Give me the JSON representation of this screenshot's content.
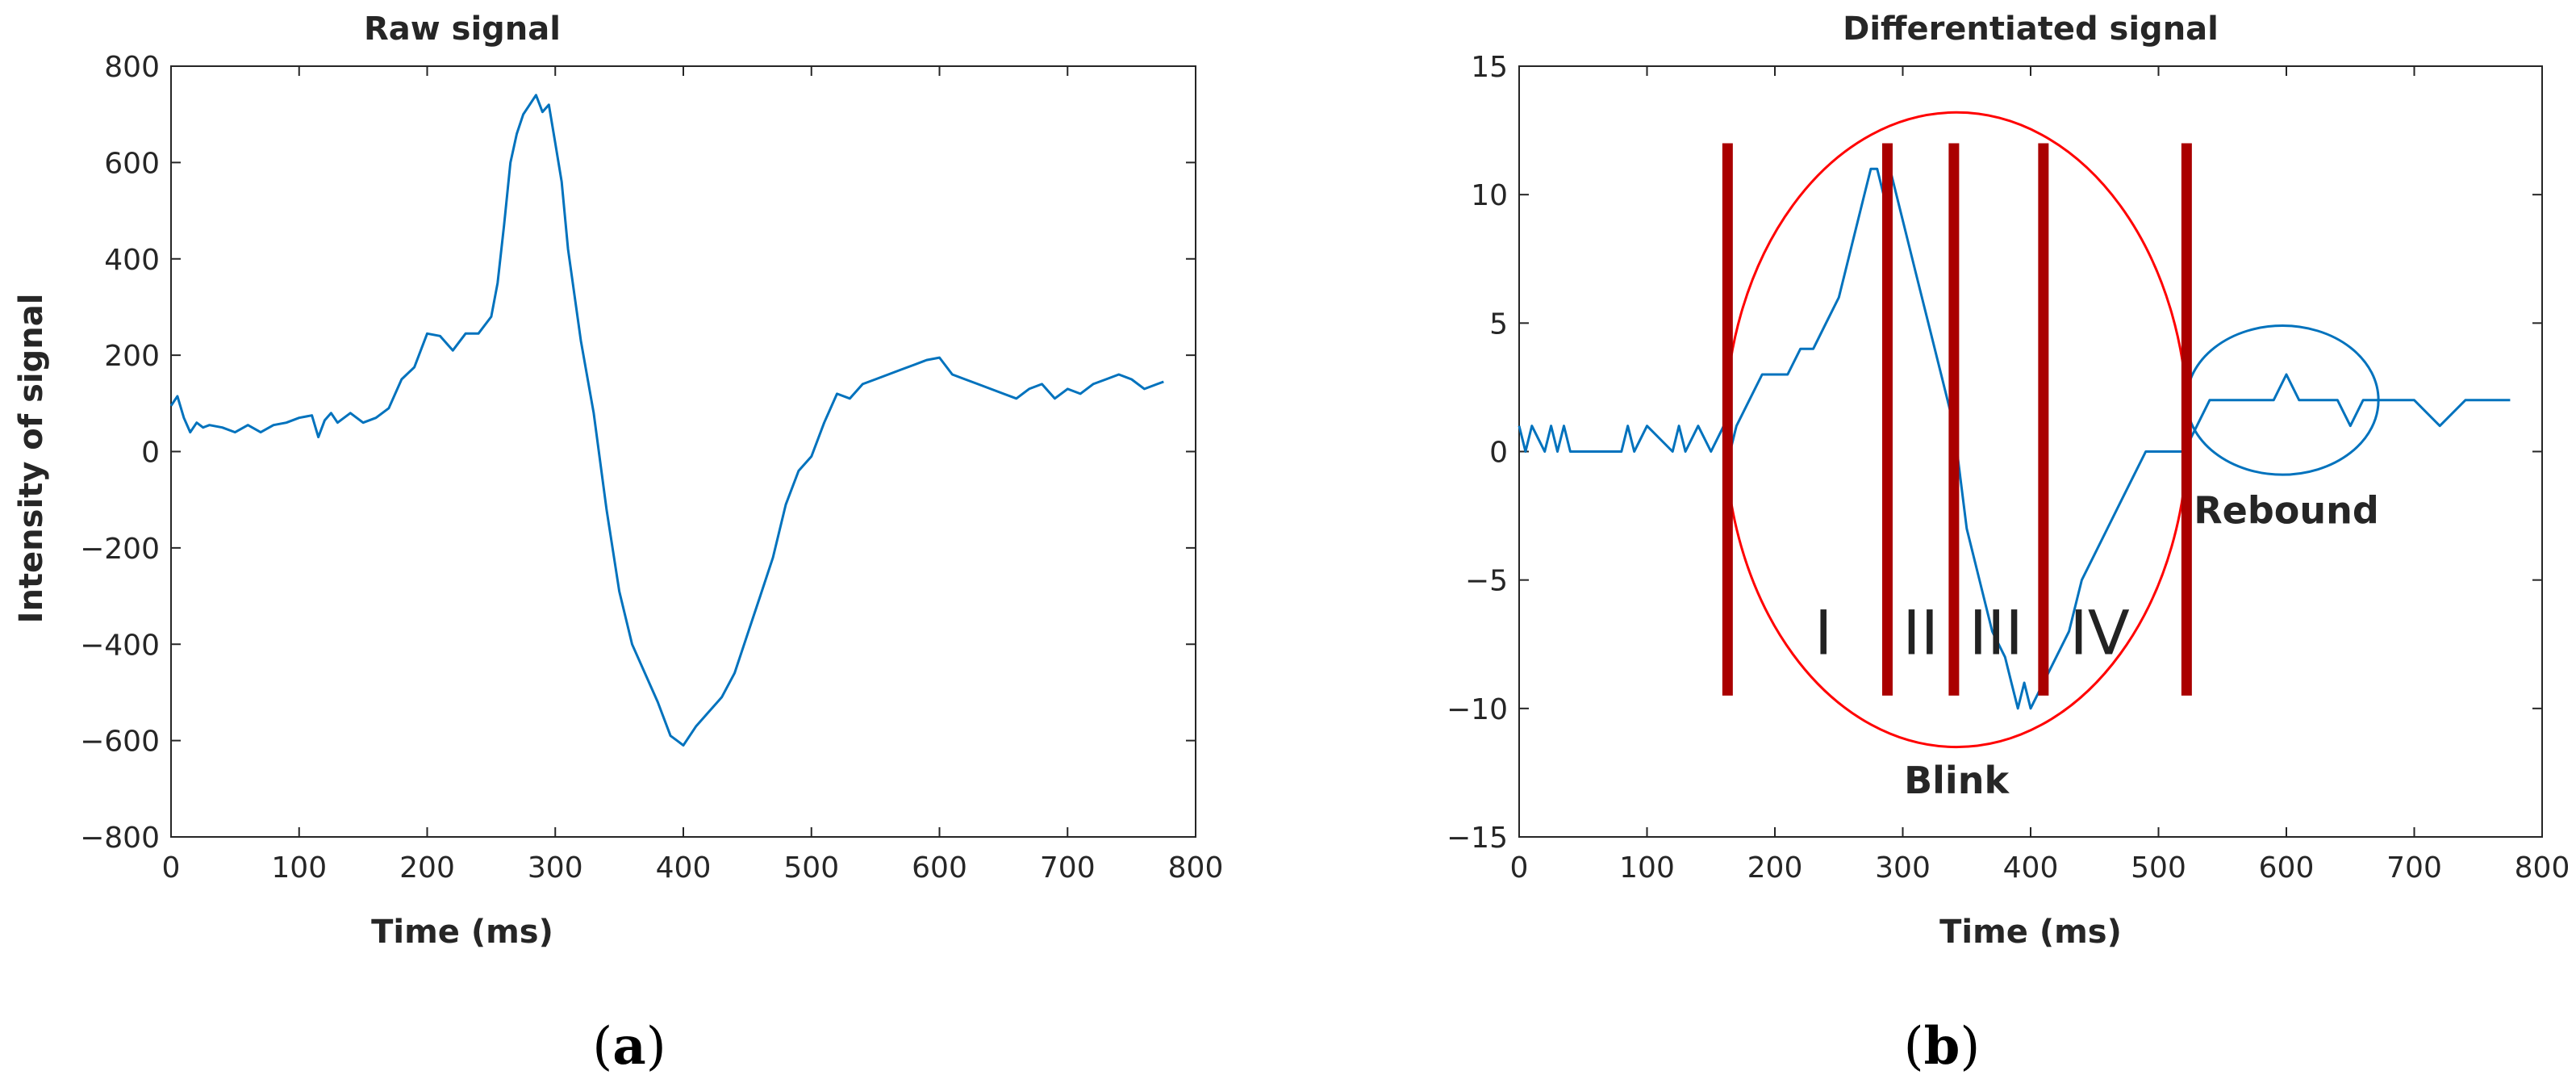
{
  "figure": {
    "panel_a_label": "a",
    "panel_b_label": "b"
  },
  "chart_data": [
    {
      "type": "line",
      "title": "Raw signal",
      "xlabel": "Time (ms)",
      "ylabel": "Intensity of signal",
      "xlim": [
        0,
        800
      ],
      "ylim": [
        -800,
        800
      ],
      "xticks": [
        0,
        100,
        200,
        300,
        400,
        500,
        600,
        700,
        800
      ],
      "yticks": [
        -800,
        -600,
        -400,
        -200,
        0,
        200,
        400,
        600,
        800
      ],
      "ytick_labels": [
        "−800",
        "−600",
        "−400",
        "−200",
        "0",
        "200",
        "400",
        "600",
        "800"
      ],
      "grid": false,
      "series": [
        {
          "color": "#0072BD",
          "x": [
            0,
            5,
            10,
            15,
            20,
            25,
            30,
            40,
            50,
            60,
            70,
            80,
            90,
            100,
            110,
            115,
            120,
            125,
            130,
            140,
            150,
            160,
            170,
            180,
            190,
            200,
            210,
            220,
            230,
            240,
            250,
            255,
            260,
            265,
            270,
            275,
            280,
            285,
            290,
            295,
            300,
            305,
            310,
            320,
            330,
            340,
            350,
            360,
            370,
            380,
            390,
            395,
            400,
            410,
            420,
            430,
            440,
            450,
            460,
            470,
            480,
            490,
            500,
            510,
            520,
            530,
            540,
            550,
            560,
            570,
            580,
            590,
            600,
            610,
            620,
            630,
            640,
            650,
            660,
            670,
            680,
            690,
            700,
            710,
            720,
            730,
            740,
            750,
            760,
            770,
            775
          ],
          "y": [
            95,
            115,
            70,
            40,
            60,
            50,
            55,
            50,
            40,
            55,
            40,
            55,
            60,
            70,
            75,
            30,
            65,
            80,
            60,
            80,
            60,
            70,
            90,
            150,
            175,
            245,
            240,
            210,
            245,
            245,
            280,
            350,
            470,
            600,
            660,
            700,
            720,
            740,
            705,
            720,
            640,
            560,
            420,
            230,
            80,
            -120,
            -290,
            -400,
            -460,
            -520,
            -590,
            -600,
            -610,
            -570,
            -540,
            -510,
            -460,
            -380,
            -300,
            -220,
            -110,
            -40,
            -10,
            60,
            120,
            110,
            140,
            150,
            160,
            170,
            180,
            190,
            195,
            160,
            150,
            140,
            130,
            120,
            110,
            130,
            140,
            110,
            130,
            120,
            140,
            150,
            160,
            150,
            130,
            140,
            145
          ]
        }
      ]
    },
    {
      "type": "line",
      "title": "Differentiated signal",
      "xlabel": "Time (ms)",
      "ylabel": "",
      "xlim": [
        0,
        800
      ],
      "ylim": [
        -15,
        15
      ],
      "xticks": [
        0,
        100,
        200,
        300,
        400,
        500,
        600,
        700,
        800
      ],
      "yticks": [
        -15,
        -10,
        -5,
        0,
        5,
        10,
        15
      ],
      "ytick_labels": [
        "−15",
        "−10",
        "−5",
        "0",
        "5",
        "10",
        "15"
      ],
      "grid": false,
      "series": [
        {
          "color": "#0072BD",
          "x": [
            0,
            5,
            10,
            20,
            25,
            30,
            35,
            40,
            50,
            60,
            80,
            85,
            90,
            100,
            120,
            125,
            130,
            140,
            150,
            160,
            165,
            170,
            180,
            190,
            200,
            210,
            220,
            230,
            240,
            250,
            260,
            265,
            270,
            275,
            280,
            285,
            290,
            295,
            300,
            305,
            310,
            320,
            330,
            335,
            340,
            345,
            350,
            360,
            370,
            380,
            385,
            390,
            395,
            400,
            410,
            420,
            430,
            440,
            450,
            460,
            470,
            480,
            490,
            500,
            510,
            520,
            530,
            540,
            550,
            560,
            570,
            580,
            590,
            600,
            610,
            620,
            630,
            640,
            650,
            660,
            670,
            680,
            690,
            700,
            720,
            740,
            760,
            775
          ],
          "y": [
            1,
            0,
            1,
            0,
            1,
            0,
            1,
            0,
            0,
            0,
            0,
            1,
            0,
            1,
            0,
            1,
            0,
            1,
            0,
            1,
            0,
            1,
            2,
            3,
            3,
            3,
            4,
            4,
            5,
            6,
            8,
            9,
            10,
            11,
            11,
            10,
            11,
            10,
            9,
            8,
            7,
            5,
            3,
            2,
            1,
            -1,
            -3,
            -5,
            -7,
            -8,
            -9,
            -10,
            -9,
            -10,
            -9,
            -8,
            -7,
            -5,
            -4,
            -3,
            -2,
            -1,
            0,
            0,
            0,
            0,
            1,
            2,
            2,
            2,
            2,
            2,
            2,
            3,
            2,
            2,
            2,
            2,
            1,
            2,
            2,
            2,
            2,
            2,
            1,
            2,
            2,
            2
          ]
        }
      ],
      "annotations": {
        "phase_labels": [
          {
            "text": "I",
            "x": 238,
            "y": -7
          },
          {
            "text": "II",
            "x": 314,
            "y": -7
          },
          {
            "text": "III",
            "x": 373,
            "y": -7
          },
          {
            "text": "IV",
            "x": 454,
            "y": -7
          }
        ],
        "blink_label": {
          "text": "Blink",
          "x": 342,
          "y": -12.8
        },
        "rebound_label": {
          "text": "Rebound",
          "x": 600,
          "y": -2.3
        },
        "vertical_markers": {
          "color": "#AA0000",
          "x": [
            163,
            288,
            340,
            410,
            522
          ],
          "y_range": [
            -9.5,
            12
          ]
        },
        "blink_ellipse": {
          "color": "#FF0000",
          "center": [
            342,
            0.85
          ],
          "radius_x": 181,
          "radius_y": 12.35
        },
        "rebound_ellipse": {
          "color": "#0072BD",
          "center": [
            597,
            2
          ],
          "radius_x": 75,
          "radius_y": 2.9
        }
      }
    }
  ]
}
